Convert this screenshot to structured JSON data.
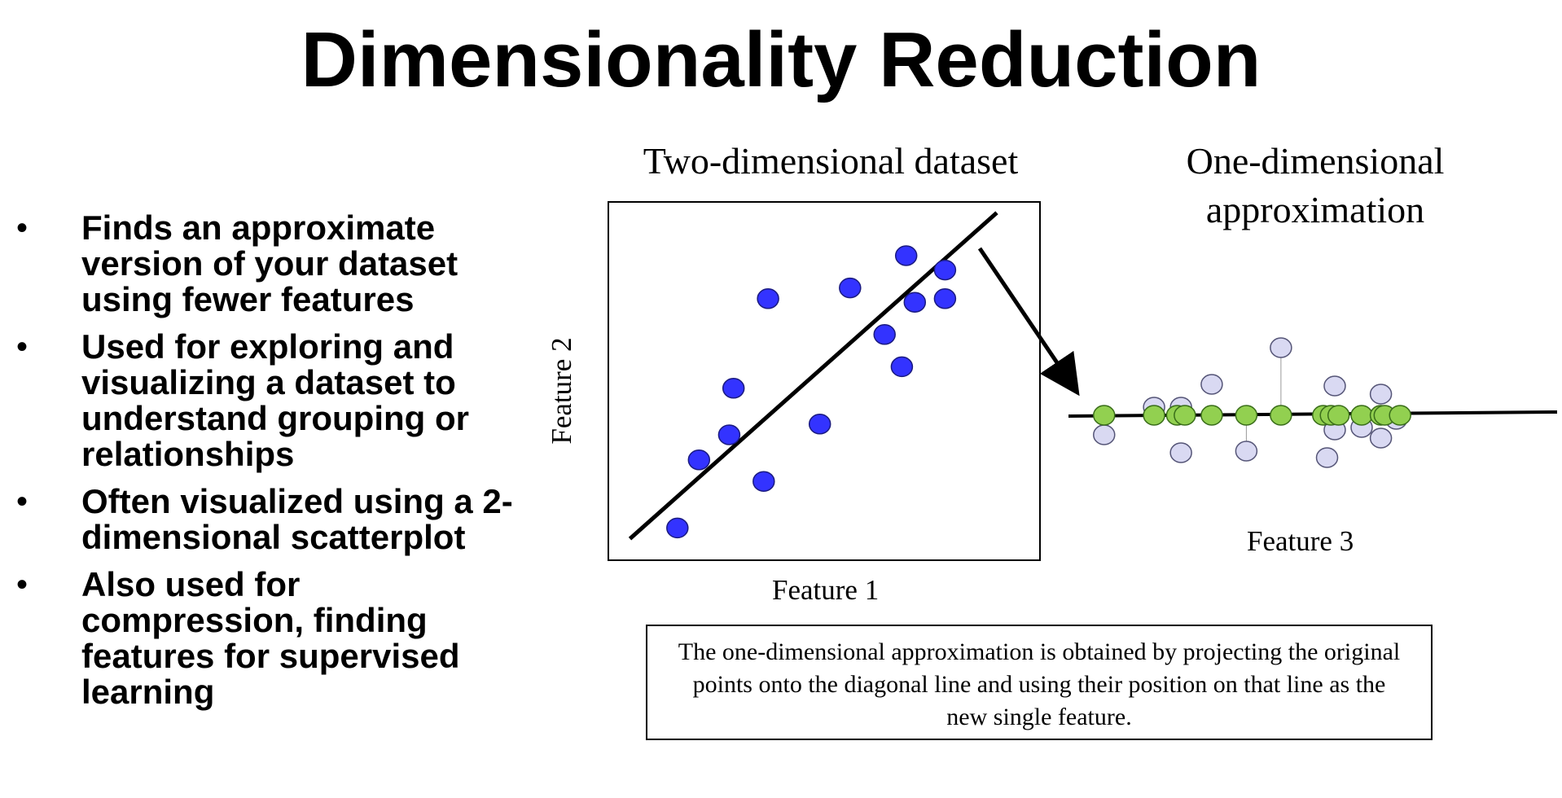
{
  "slide": {
    "title": "Dimensionality Reduction",
    "bullets": [
      "Finds an approximate version of your dataset using fewer features",
      "Used for exploring and visualizing a dataset to understand grouping or relationships",
      "Often visualized using a 2-dimensional scatterplot",
      "Also used for compression, finding features for supervised learning"
    ],
    "bullet_symbol": "•",
    "caption": "The one-dimensional approximation is obtained by projecting the original points onto the diagonal line and using their position on that line as the new single feature."
  },
  "chart_data": [
    {
      "type": "scatter",
      "title": "Two-dimensional dataset",
      "xlabel": "Feature 1",
      "ylabel": "Feature 2",
      "xlim": [
        0,
        100
      ],
      "ylim": [
        0,
        100
      ],
      "point_color": "#3333ff",
      "fit_line": {
        "x": [
          5,
          90
        ],
        "y": [
          6,
          97
        ]
      },
      "points": [
        {
          "x": 16,
          "y": 9
        },
        {
          "x": 21,
          "y": 28
        },
        {
          "x": 28,
          "y": 35
        },
        {
          "x": 29,
          "y": 48
        },
        {
          "x": 36,
          "y": 22
        },
        {
          "x": 37,
          "y": 73
        },
        {
          "x": 49,
          "y": 38
        },
        {
          "x": 56,
          "y": 76
        },
        {
          "x": 64,
          "y": 63
        },
        {
          "x": 68,
          "y": 54
        },
        {
          "x": 69,
          "y": 85
        },
        {
          "x": 71,
          "y": 72
        },
        {
          "x": 78,
          "y": 81
        },
        {
          "x": 78,
          "y": 73
        }
      ]
    },
    {
      "type": "scatter",
      "title": "One-dimensional approximation",
      "xlabel": "Feature 3",
      "ylabel": "",
      "xlim": [
        0,
        100
      ],
      "ylim": [
        -100,
        100
      ],
      "original_point_color": "#d9d9f2",
      "projected_point_color": "#92d050",
      "original_points": [
        {
          "x": 8,
          "y": -24
        },
        {
          "x": 21,
          "y": 10
        },
        {
          "x": 28,
          "y": 10
        },
        {
          "x": 28,
          "y": -46
        },
        {
          "x": 36,
          "y": 38
        },
        {
          "x": 45,
          "y": -44
        },
        {
          "x": 54,
          "y": 83
        },
        {
          "x": 66,
          "y": -52
        },
        {
          "x": 68,
          "y": 36
        },
        {
          "x": 68,
          "y": -18
        },
        {
          "x": 75,
          "y": -15
        },
        {
          "x": 80,
          "y": 26
        },
        {
          "x": 80,
          "y": -28
        },
        {
          "x": 84,
          "y": -5
        }
      ],
      "projected_points": [
        {
          "x": 8,
          "y": 0
        },
        {
          "x": 21,
          "y": 0
        },
        {
          "x": 27,
          "y": 0
        },
        {
          "x": 29,
          "y": 0
        },
        {
          "x": 36,
          "y": 0
        },
        {
          "x": 45,
          "y": 0
        },
        {
          "x": 54,
          "y": 0
        },
        {
          "x": 65,
          "y": 0
        },
        {
          "x": 67,
          "y": 0
        },
        {
          "x": 69,
          "y": 0
        },
        {
          "x": 75,
          "y": 0
        },
        {
          "x": 80,
          "y": 0
        },
        {
          "x": 81,
          "y": 0
        },
        {
          "x": 85,
          "y": 0
        }
      ],
      "projection_ticks": [
        {
          "x": 45,
          "from_y": -44
        },
        {
          "x": 54,
          "from_y": 83
        }
      ]
    }
  ]
}
